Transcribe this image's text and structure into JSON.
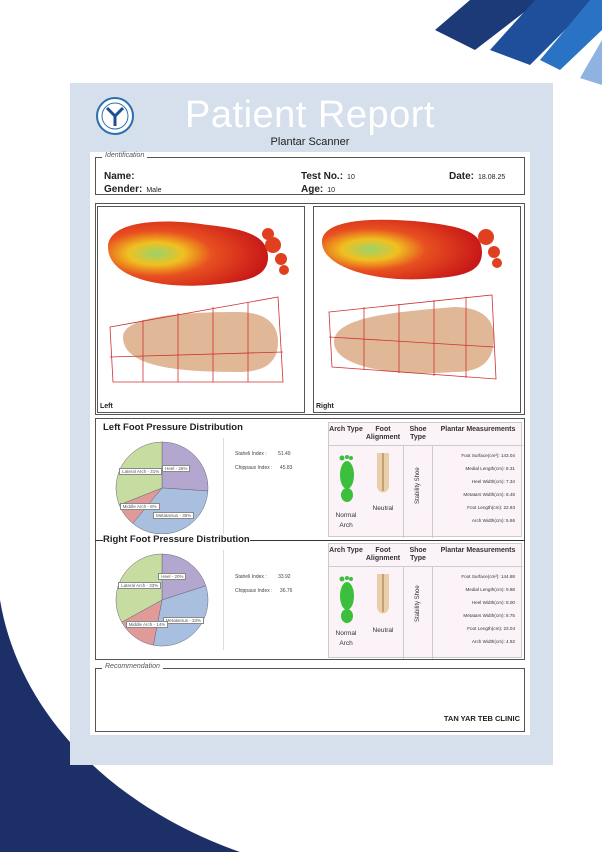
{
  "header": {
    "title": "Patient Report",
    "subtitle": "Plantar Scanner"
  },
  "identification": {
    "legend": "Identification",
    "name_label": "Name:",
    "name_value": "",
    "test_label": "Test No.:",
    "test_value": "10",
    "date_label": "Date:",
    "date_value": "18.08.25",
    "gender_label": "Gender:",
    "gender_value": "Male",
    "age_label": "Age:",
    "age_value": "10"
  },
  "scans": {
    "left_label": "Left",
    "right_label": "Right"
  },
  "left": {
    "title": "Left Foot Pressure Distribution",
    "staheli_label": "Staheli Index :",
    "staheli_value": "51.49",
    "chippaux_label": "Chippaux Index :",
    "chippaux_value": "45.83",
    "pie": [
      {
        "label": "Heel - 26%",
        "value": 26,
        "color": "#b3a6cf"
      },
      {
        "label": "Metatarsus - 35%",
        "value": 35,
        "color": "#a9bfdf"
      },
      {
        "label": "Middle Arch - 8%",
        "value": 8,
        "color": "#e09a98"
      },
      {
        "label": "Lateral Arch - 31%",
        "value": 31,
        "color": "#c7dca0"
      }
    ],
    "arch_type": "Normal Arch",
    "alignment": "Neutral",
    "shoe_type": "Stability Shoe",
    "measurements": [
      "Foot Surface(cm²): 143.04",
      "Medial Length(cm): 8.31",
      "Heel Width(cm): 7.34",
      "Metatars Width(cm): 8.48",
      "Foot Length(cm): 22.93",
      "Arch Width(cm): 5.86"
    ]
  },
  "right": {
    "title": "Right Foot Pressure Distribution",
    "staheli_label": "Staheli Index :",
    "staheli_value": "33.92",
    "chippaux_label": "Chippaux Index :",
    "chippaux_value": "36.76",
    "pie": [
      {
        "label": "Heel - 20%",
        "value": 20,
        "color": "#b3a6cf"
      },
      {
        "label": "Metatarsus - 33%",
        "value": 33,
        "color": "#a9bfdf"
      },
      {
        "label": "Middle Arch - 14%",
        "value": 14,
        "color": "#e09a98"
      },
      {
        "label": "Lateral Arch - 33%",
        "value": 33,
        "color": "#c7dca0"
      }
    ],
    "arch_type": "Normal Arch",
    "alignment": "Neutral",
    "shoe_type": "Stability Shoe",
    "measurements": [
      "Foot Surface(cm²): 144.88",
      "Medial Length(cm): 9.88",
      "Heel Width(cm): 8.00",
      "Metatars Width(cm): 8.75",
      "Foot Length(cm): 23.04",
      "Arch Width(cm): 4.92"
    ]
  },
  "table_headers": {
    "arch": "Arch Type",
    "alignment": "Foot Alignment",
    "shoe": "Shoe Type",
    "plantar": "Plantar Measurements"
  },
  "recommendation": {
    "legend": "Recommendation",
    "clinic": "TAN YAR TEB CLINIC"
  }
}
